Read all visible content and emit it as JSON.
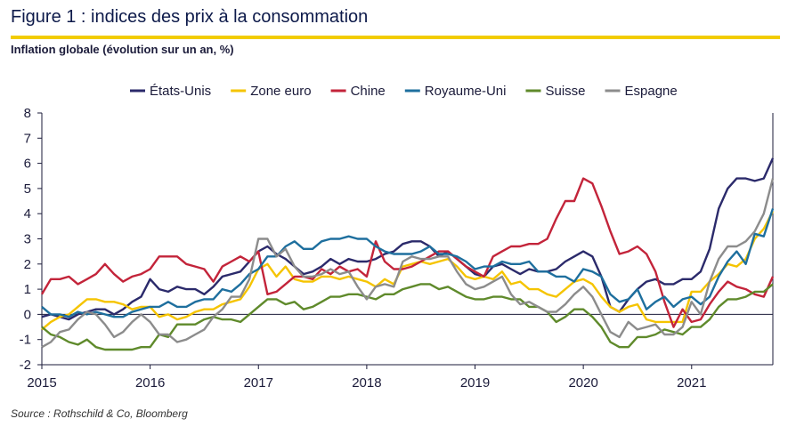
{
  "header": {
    "title": "Figure 1 : indices des prix à la consommation",
    "subtitle": "Inflation globale (évolution sur un an, %)"
  },
  "footer": {
    "source": "Source : Rothschild & Co, Bloomberg"
  },
  "chart_data": {
    "type": "line",
    "title": "Figure 1 : indices des prix à la consommation",
    "ylabel": "Inflation globale (évolution sur un an, %)",
    "xlabel": "",
    "x_start": 2015.0,
    "x_step": 0.08333,
    "xlim": [
      2015.0,
      2021.75
    ],
    "ylim": [
      -2,
      8
    ],
    "yticks": [
      "-2",
      "-1",
      "0",
      "1",
      "2",
      "3",
      "4",
      "5",
      "6",
      "7",
      "8"
    ],
    "xticks": [
      "2015",
      "2016",
      "2017",
      "2018",
      "2019",
      "2020",
      "2021"
    ],
    "legend_position": "top",
    "series": [
      {
        "name": "États-Unis",
        "color": "#2b2a6b",
        "values": [
          -0.1,
          0.0,
          -0.1,
          -0.2,
          0.0,
          0.1,
          0.2,
          0.2,
          0.0,
          0.2,
          0.5,
          0.7,
          1.4,
          1.0,
          0.9,
          1.1,
          1.0,
          1.0,
          0.8,
          1.1,
          1.5,
          1.6,
          1.7,
          2.1,
          2.5,
          2.7,
          2.4,
          2.2,
          1.9,
          1.6,
          1.7,
          1.9,
          2.2,
          2.0,
          2.2,
          2.1,
          2.1,
          2.2,
          2.4,
          2.5,
          2.8,
          2.9,
          2.9,
          2.7,
          2.3,
          2.5,
          2.2,
          1.9,
          1.6,
          1.5,
          1.9,
          2.0,
          1.8,
          1.6,
          1.8,
          1.7,
          1.7,
          1.8,
          2.1,
          2.3,
          2.5,
          2.3,
          1.5,
          0.3,
          0.1,
          0.6,
          1.0,
          1.3,
          1.4,
          1.2,
          1.2,
          1.4,
          1.4,
          1.7,
          2.6,
          4.2,
          5.0,
          5.4,
          5.4,
          5.3,
          5.4,
          6.2
        ]
      },
      {
        "name": "Zone euro",
        "color": "#f5c400",
        "values": [
          -0.6,
          -0.3,
          -0.1,
          0.0,
          0.3,
          0.6,
          0.6,
          0.5,
          0.5,
          0.4,
          0.2,
          0.3,
          0.3,
          -0.1,
          0.0,
          -0.2,
          -0.1,
          0.1,
          0.2,
          0.2,
          0.4,
          0.5,
          0.6,
          1.1,
          1.8,
          2.0,
          1.5,
          1.9,
          1.4,
          1.3,
          1.3,
          1.5,
          1.5,
          1.4,
          1.5,
          1.4,
          1.3,
          1.1,
          1.4,
          1.2,
          1.9,
          2.0,
          2.1,
          2.0,
          2.1,
          2.2,
          1.9,
          1.5,
          1.4,
          1.5,
          1.4,
          1.7,
          1.2,
          1.3,
          1.0,
          1.0,
          0.8,
          0.7,
          1.0,
          1.3,
          1.4,
          1.2,
          0.7,
          0.3,
          0.1,
          0.3,
          0.4,
          -0.2,
          -0.3,
          -0.3,
          -0.3,
          -0.3,
          0.9,
          0.9,
          1.3,
          1.6,
          2.0,
          1.9,
          2.2,
          3.0,
          3.4,
          4.1
        ]
      },
      {
        "name": "Chine",
        "color": "#c3243a",
        "values": [
          0.8,
          1.4,
          1.4,
          1.5,
          1.2,
          1.4,
          1.6,
          2.0,
          1.6,
          1.3,
          1.5,
          1.6,
          1.8,
          2.3,
          2.3,
          2.3,
          2.0,
          1.9,
          1.8,
          1.3,
          1.9,
          2.1,
          2.3,
          2.1,
          2.5,
          0.8,
          0.9,
          1.2,
          1.5,
          1.5,
          1.4,
          1.8,
          1.6,
          1.9,
          1.7,
          1.8,
          1.5,
          2.9,
          2.1,
          1.8,
          1.8,
          1.9,
          2.1,
          2.3,
          2.5,
          2.5,
          2.2,
          1.9,
          1.7,
          1.5,
          2.3,
          2.5,
          2.7,
          2.7,
          2.8,
          2.8,
          3.0,
          3.8,
          4.5,
          4.5,
          5.4,
          5.2,
          4.3,
          3.3,
          2.4,
          2.5,
          2.7,
          2.4,
          1.7,
          0.5,
          -0.5,
          0.2,
          -0.3,
          -0.2,
          0.4,
          0.9,
          1.3,
          1.1,
          1.0,
          0.8,
          0.7,
          1.5
        ]
      },
      {
        "name": "Royaume-Uni",
        "color": "#1e6f9e",
        "values": [
          0.3,
          0.0,
          0.0,
          -0.1,
          0.1,
          0.0,
          0.1,
          0.0,
          -0.1,
          -0.1,
          0.1,
          0.2,
          0.3,
          0.3,
          0.5,
          0.3,
          0.3,
          0.5,
          0.6,
          0.6,
          1.0,
          0.9,
          1.2,
          1.6,
          1.8,
          2.3,
          2.3,
          2.7,
          2.9,
          2.6,
          2.6,
          2.9,
          3.0,
          3.0,
          3.1,
          3.0,
          3.0,
          2.7,
          2.5,
          2.4,
          2.4,
          2.4,
          2.5,
          2.7,
          2.4,
          2.4,
          2.3,
          2.1,
          1.8,
          1.9,
          1.9,
          2.1,
          2.0,
          2.0,
          2.1,
          1.7,
          1.7,
          1.5,
          1.5,
          1.3,
          1.8,
          1.7,
          1.5,
          0.8,
          0.5,
          0.6,
          1.0,
          0.2,
          0.5,
          0.7,
          0.3,
          0.6,
          0.7,
          0.4,
          0.7,
          1.5,
          2.1,
          2.5,
          2.0,
          3.2,
          3.1,
          4.2
        ]
      },
      {
        "name": "Suisse",
        "color": "#5f8a2b",
        "values": [
          -0.5,
          -0.8,
          -0.9,
          -1.1,
          -1.2,
          -1.0,
          -1.3,
          -1.4,
          -1.4,
          -1.4,
          -1.4,
          -1.3,
          -1.3,
          -0.8,
          -0.9,
          -0.4,
          -0.4,
          -0.4,
          -0.2,
          -0.1,
          -0.2,
          -0.2,
          -0.3,
          0.0,
          0.3,
          0.6,
          0.6,
          0.4,
          0.5,
          0.2,
          0.3,
          0.5,
          0.7,
          0.7,
          0.8,
          0.8,
          0.7,
          0.6,
          0.8,
          0.8,
          1.0,
          1.1,
          1.2,
          1.2,
          1.0,
          1.1,
          0.9,
          0.7,
          0.6,
          0.6,
          0.7,
          0.7,
          0.6,
          0.6,
          0.3,
          0.3,
          0.1,
          -0.3,
          -0.1,
          0.2,
          0.2,
          -0.1,
          -0.5,
          -1.1,
          -1.3,
          -1.3,
          -0.9,
          -0.9,
          -0.8,
          -0.6,
          -0.7,
          -0.8,
          -0.5,
          -0.5,
          -0.2,
          0.3,
          0.6,
          0.6,
          0.7,
          0.9,
          0.9,
          1.2
        ]
      },
      {
        "name": "Espagne",
        "color": "#8c8c8c",
        "values": [
          -1.3,
          -1.1,
          -0.7,
          -0.6,
          -0.2,
          0.1,
          0.0,
          -0.4,
          -0.9,
          -0.7,
          -0.3,
          0.0,
          -0.3,
          -0.8,
          -0.8,
          -1.1,
          -1.0,
          -0.8,
          -0.6,
          -0.1,
          0.2,
          0.7,
          0.7,
          1.4,
          3.0,
          3.0,
          2.3,
          2.6,
          1.9,
          1.5,
          1.5,
          1.6,
          1.8,
          1.6,
          1.7,
          1.1,
          0.6,
          1.1,
          1.2,
          1.1,
          2.1,
          2.3,
          2.2,
          2.2,
          2.3,
          2.3,
          1.7,
          1.2,
          1.0,
          1.1,
          1.3,
          1.5,
          0.8,
          0.4,
          0.5,
          0.3,
          0.1,
          0.1,
          0.4,
          0.8,
          1.1,
          0.7,
          0.0,
          -0.7,
          -0.9,
          -0.3,
          -0.6,
          -0.5,
          -0.4,
          -0.8,
          -0.8,
          -0.5,
          0.5,
          0.0,
          1.3,
          2.2,
          2.7,
          2.7,
          2.9,
          3.3,
          4.0,
          5.4
        ]
      }
    ]
  }
}
